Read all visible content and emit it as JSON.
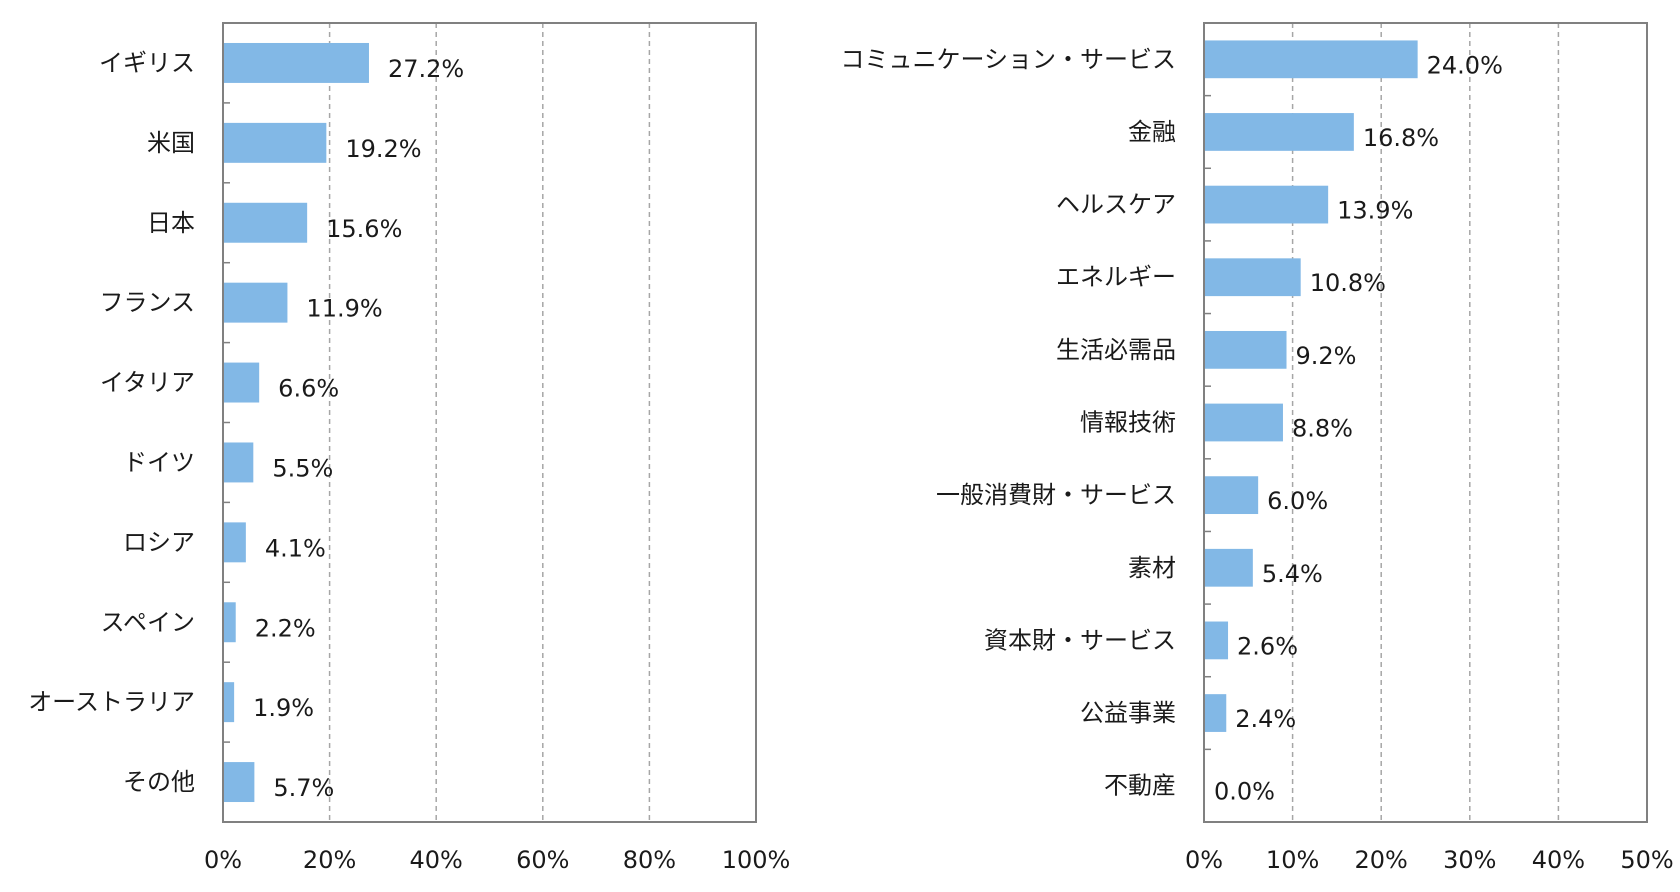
{
  "colors": {
    "bar": "#82b8e6",
    "axis": "#808080",
    "grid": "#a6a6a6",
    "text": "#1a1a1a"
  },
  "chart_data": [
    {
      "type": "bar",
      "orientation": "horizontal",
      "categories": [
        "イギリス",
        "米国",
        "日本",
        "フランス",
        "イタリア",
        "ドイツ",
        "ロシア",
        "スペイン",
        "オーストラリア",
        "その他"
      ],
      "values": [
        27.2,
        19.2,
        15.6,
        11.9,
        6.6,
        5.5,
        4.1,
        2.2,
        1.9,
        5.7
      ],
      "data_labels": [
        "27.2%",
        "19.2%",
        "15.6%",
        "11.9%",
        "6.6%",
        "5.5%",
        "4.1%",
        "2.2%",
        "1.9%",
        "5.7%"
      ],
      "xlim": [
        0,
        100
      ],
      "x_ticks": [
        0,
        20,
        40,
        60,
        80,
        100
      ],
      "x_tick_labels": [
        "0%",
        "20%",
        "40%",
        "60%",
        "80%",
        "100%"
      ],
      "grid": "vertical dashed",
      "legend": "none"
    },
    {
      "type": "bar",
      "orientation": "horizontal",
      "categories": [
        "コミュニケーション・サービス",
        "金融",
        "ヘルスケア",
        "エネルギー",
        "生活必需品",
        "情報技術",
        "一般消費財・サービス",
        "素材",
        "資本財・サービス",
        "公益事業",
        "不動産"
      ],
      "values": [
        24.0,
        16.8,
        13.9,
        10.8,
        9.2,
        8.8,
        6.0,
        5.4,
        2.6,
        2.4,
        0.0
      ],
      "data_labels": [
        "24.0%",
        "16.8%",
        "13.9%",
        "10.8%",
        "9.2%",
        "8.8%",
        "6.0%",
        "5.4%",
        "2.6%",
        "2.4%",
        "0.0%"
      ],
      "xlim": [
        0,
        50
      ],
      "x_ticks": [
        0,
        10,
        20,
        30,
        40,
        50
      ],
      "x_tick_labels": [
        "0%",
        "10%",
        "20%",
        "30%",
        "40%",
        "50%"
      ],
      "grid": "vertical dashed",
      "legend": "none"
    }
  ]
}
